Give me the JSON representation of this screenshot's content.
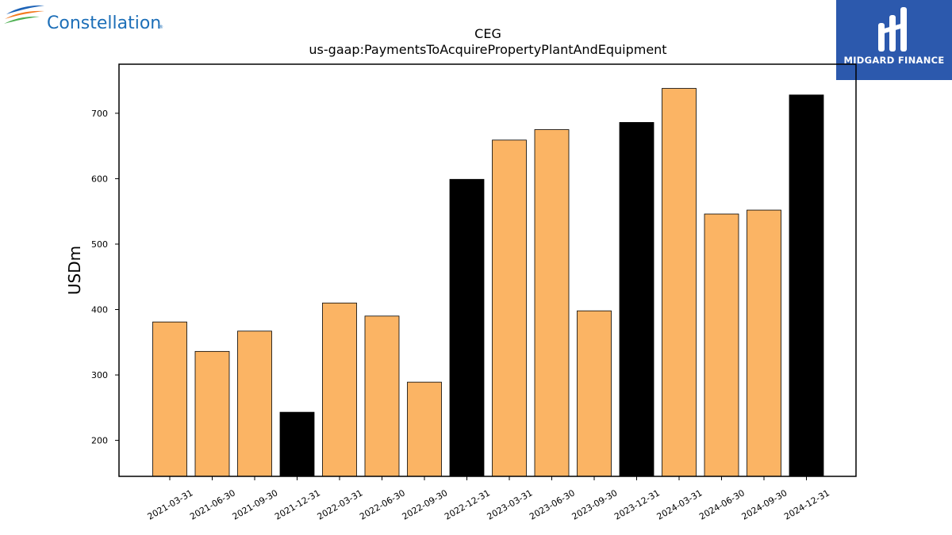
{
  "branding": {
    "left_logo_text": "Constellation",
    "right_logo_text": "MIDGARD FINANCE",
    "right_logo_bg": "#2c59ad"
  },
  "colors": {
    "bar_regular": "#fbb464",
    "bar_highlight": "#000000",
    "bar_edge": "#000000"
  },
  "chart_data": {
    "type": "bar",
    "title": "CEG",
    "subtitle": "us-gaap:PaymentsToAcquirePropertyPlantAndEquipment",
    "xlabel": "",
    "ylabel": "USDm",
    "ylim": [
      145,
      775
    ],
    "yticks": [
      200,
      300,
      400,
      500,
      600,
      700
    ],
    "categories": [
      "2021-03-31",
      "2021-06-30",
      "2021-09-30",
      "2021-12-31",
      "2022-03-31",
      "2022-06-30",
      "2022-09-30",
      "2022-12-31",
      "2023-03-31",
      "2023-06-30",
      "2023-09-30",
      "2023-12-31",
      "2024-03-31",
      "2024-06-30",
      "2024-09-30",
      "2024-12-31"
    ],
    "values": [
      381,
      336,
      367,
      243,
      410,
      390,
      289,
      599,
      659,
      675,
      398,
      686,
      738,
      546,
      552,
      728
    ],
    "highlight": [
      false,
      false,
      false,
      true,
      false,
      false,
      false,
      true,
      false,
      false,
      false,
      true,
      false,
      false,
      false,
      true
    ],
    "grid": false,
    "legend": "none"
  }
}
